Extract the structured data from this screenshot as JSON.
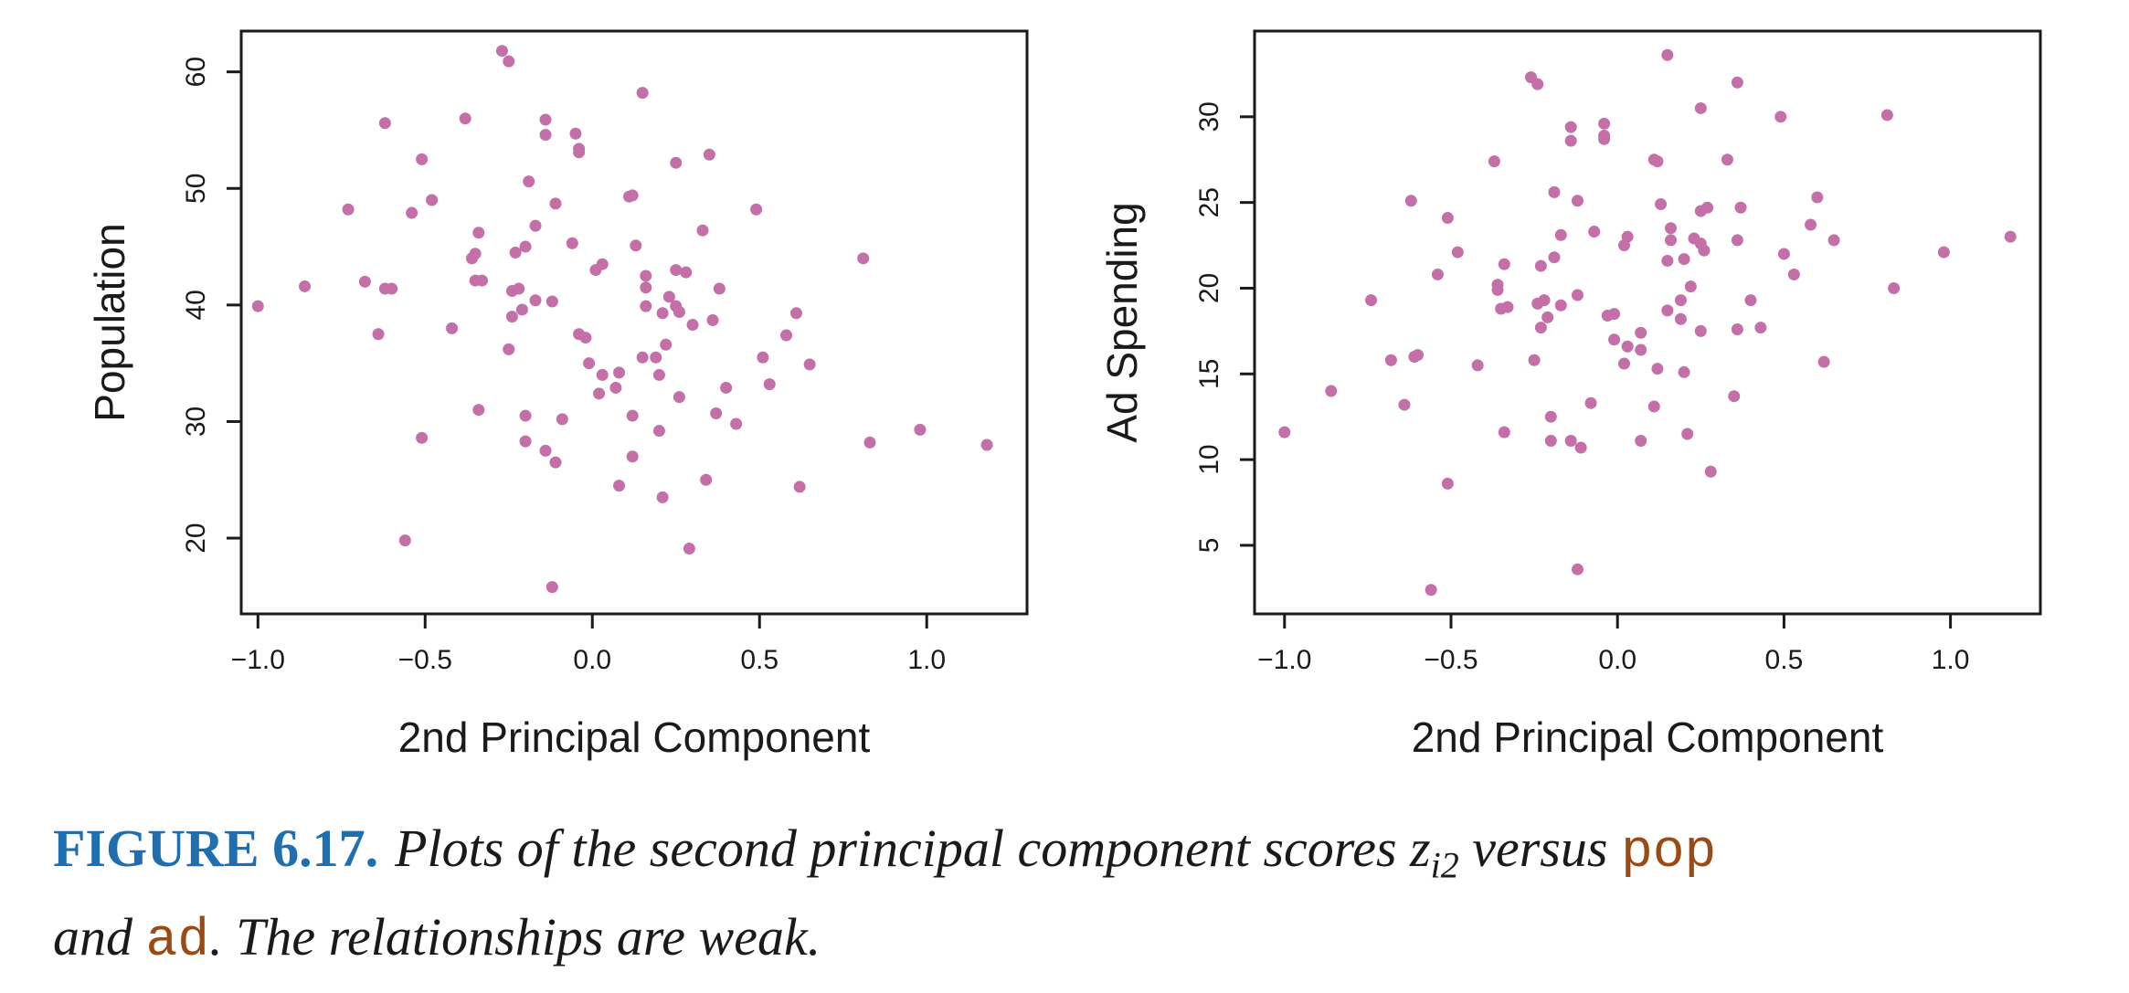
{
  "colors": {
    "point": "#c46fa7",
    "axis": "#1a1a1a",
    "caption_label": "#1f6fb0",
    "code": "#9a4a12"
  },
  "caption": {
    "label": "FIGURE 6.17.",
    "text1": "Plots of the second principal component scores ",
    "var": "z",
    "sub": "i2",
    "text2": " versus ",
    "code1": "pop",
    "text3": "and ",
    "code2": "ad",
    "text4": ". The relationships are weak."
  },
  "chart_data": [
    {
      "type": "scatter",
      "xlabel": "2nd Principal Component",
      "ylabel": "Population",
      "xlim": [
        -1.05,
        1.3
      ],
      "ylim": [
        13.5,
        63.5
      ],
      "xticks": [
        -1.0,
        -0.5,
        0.0,
        0.5,
        1.0
      ],
      "xtick_labels": [
        "−1.0",
        "−0.5",
        "0.0",
        "0.5",
        "1.0"
      ],
      "yticks": [
        20,
        30,
        40,
        50,
        60
      ],
      "ytick_labels": [
        "20",
        "30",
        "40",
        "50",
        "60"
      ],
      "points": [
        [
          -1.0,
          39.9
        ],
        [
          -0.86,
          41.6
        ],
        [
          -0.73,
          48.2
        ],
        [
          -0.68,
          42.0
        ],
        [
          -0.64,
          37.5
        ],
        [
          -0.62,
          55.6
        ],
        [
          -0.62,
          41.4
        ],
        [
          -0.6,
          41.4
        ],
        [
          -0.56,
          19.8
        ],
        [
          -0.54,
          47.9
        ],
        [
          -0.51,
          52.5
        ],
        [
          -0.51,
          28.6
        ],
        [
          -0.48,
          49.0
        ],
        [
          -0.42,
          38.0
        ],
        [
          -0.38,
          56.0
        ],
        [
          -0.36,
          44.0
        ],
        [
          -0.35,
          44.4
        ],
        [
          -0.35,
          42.1
        ],
        [
          -0.34,
          46.2
        ],
        [
          -0.34,
          31.0
        ],
        [
          -0.33,
          42.1
        ],
        [
          -0.27,
          61.8
        ],
        [
          -0.25,
          60.9
        ],
        [
          -0.25,
          36.2
        ],
        [
          -0.24,
          41.2
        ],
        [
          -0.24,
          39.0
        ],
        [
          -0.23,
          44.5
        ],
        [
          -0.22,
          41.4
        ],
        [
          -0.21,
          39.6
        ],
        [
          -0.2,
          30.5
        ],
        [
          -0.2,
          28.3
        ],
        [
          -0.2,
          45.0
        ],
        [
          -0.19,
          50.6
        ],
        [
          -0.17,
          46.8
        ],
        [
          -0.17,
          40.4
        ],
        [
          -0.14,
          55.9
        ],
        [
          -0.14,
          54.6
        ],
        [
          -0.14,
          27.5
        ],
        [
          -0.12,
          40.3
        ],
        [
          -0.11,
          48.7
        ],
        [
          -0.11,
          26.5
        ],
        [
          -0.12,
          15.8
        ],
        [
          -0.09,
          30.2
        ],
        [
          -0.06,
          45.3
        ],
        [
          -0.05,
          54.7
        ],
        [
          -0.04,
          53.1
        ],
        [
          -0.04,
          53.4
        ],
        [
          -0.04,
          37.5
        ],
        [
          -0.02,
          37.2
        ],
        [
          -0.01,
          35.0
        ],
        [
          0.01,
          43.0
        ],
        [
          0.02,
          32.4
        ],
        [
          0.03,
          43.5
        ],
        [
          0.03,
          34.0
        ],
        [
          0.07,
          32.9
        ],
        [
          0.08,
          24.5
        ],
        [
          0.08,
          34.2
        ],
        [
          0.11,
          49.3
        ],
        [
          0.12,
          49.4
        ],
        [
          0.12,
          30.5
        ],
        [
          0.12,
          27.0
        ],
        [
          0.13,
          45.1
        ],
        [
          0.15,
          58.2
        ],
        [
          0.15,
          35.5
        ],
        [
          0.16,
          42.5
        ],
        [
          0.16,
          41.5
        ],
        [
          0.16,
          39.9
        ],
        [
          0.19,
          35.5
        ],
        [
          0.2,
          34.0
        ],
        [
          0.2,
          29.2
        ],
        [
          0.21,
          39.3
        ],
        [
          0.21,
          23.5
        ],
        [
          0.22,
          36.6
        ],
        [
          0.23,
          40.7
        ],
        [
          0.25,
          52.2
        ],
        [
          0.25,
          43.0
        ],
        [
          0.25,
          39.9
        ],
        [
          0.26,
          39.4
        ],
        [
          0.26,
          32.1
        ],
        [
          0.28,
          42.8
        ],
        [
          0.29,
          19.1
        ],
        [
          0.3,
          38.3
        ],
        [
          0.33,
          46.4
        ],
        [
          0.34,
          25.0
        ],
        [
          0.35,
          52.9
        ],
        [
          0.36,
          38.7
        ],
        [
          0.37,
          30.7
        ],
        [
          0.38,
          41.4
        ],
        [
          0.4,
          32.9
        ],
        [
          0.43,
          29.8
        ],
        [
          0.49,
          48.2
        ],
        [
          0.51,
          35.5
        ],
        [
          0.53,
          33.2
        ],
        [
          0.58,
          37.4
        ],
        [
          0.61,
          39.3
        ],
        [
          0.62,
          24.4
        ],
        [
          0.65,
          34.9
        ],
        [
          0.81,
          44.0
        ],
        [
          0.83,
          28.2
        ],
        [
          0.98,
          29.3
        ],
        [
          1.18,
          28.0
        ]
      ]
    },
    {
      "type": "scatter",
      "xlabel": "2nd Principal Component",
      "ylabel": "Ad Spending",
      "xlim": [
        -1.09,
        1.27
      ],
      "ylim": [
        1.0,
        35.0
      ],
      "xticks": [
        -1.0,
        -0.5,
        0.0,
        0.5,
        1.0
      ],
      "xtick_labels": [
        "−1.0",
        "−0.5",
        "0.0",
        "0.5",
        "1.0"
      ],
      "yticks": [
        5,
        10,
        15,
        20,
        25,
        30
      ],
      "ytick_labels": [
        "5",
        "10",
        "15",
        "20",
        "25",
        "30"
      ],
      "points": [
        [
          -1.0,
          11.6
        ],
        [
          -0.86,
          14.0
        ],
        [
          -0.74,
          19.3
        ],
        [
          -0.68,
          15.8
        ],
        [
          -0.64,
          13.2
        ],
        [
          -0.62,
          25.1
        ],
        [
          -0.61,
          16.0
        ],
        [
          -0.6,
          16.1
        ],
        [
          -0.56,
          2.4
        ],
        [
          -0.54,
          20.8
        ],
        [
          -0.51,
          24.1
        ],
        [
          -0.51,
          8.6
        ],
        [
          -0.48,
          22.1
        ],
        [
          -0.42,
          15.5
        ],
        [
          -0.37,
          27.4
        ],
        [
          -0.36,
          19.9
        ],
        [
          -0.36,
          20.2
        ],
        [
          -0.35,
          18.8
        ],
        [
          -0.34,
          21.4
        ],
        [
          -0.34,
          11.6
        ],
        [
          -0.33,
          18.9
        ],
        [
          -0.26,
          32.3
        ],
        [
          -0.24,
          31.9
        ],
        [
          -0.25,
          15.8
        ],
        [
          -0.24,
          19.1
        ],
        [
          -0.23,
          17.7
        ],
        [
          -0.23,
          21.3
        ],
        [
          -0.22,
          19.3
        ],
        [
          -0.21,
          18.3
        ],
        [
          -0.2,
          12.5
        ],
        [
          -0.2,
          11.1
        ],
        [
          -0.19,
          21.8
        ],
        [
          -0.19,
          25.6
        ],
        [
          -0.17,
          23.1
        ],
        [
          -0.17,
          19.0
        ],
        [
          -0.14,
          29.4
        ],
        [
          -0.14,
          28.6
        ],
        [
          -0.14,
          11.1
        ],
        [
          -0.12,
          19.6
        ],
        [
          -0.12,
          25.1
        ],
        [
          -0.11,
          10.7
        ],
        [
          -0.12,
          3.6
        ],
        [
          -0.08,
          13.3
        ],
        [
          -0.07,
          23.3
        ],
        [
          -0.04,
          29.6
        ],
        [
          -0.04,
          28.7
        ],
        [
          -0.04,
          28.9
        ],
        [
          -0.03,
          18.4
        ],
        [
          -0.01,
          18.5
        ],
        [
          -0.01,
          17.0
        ],
        [
          0.02,
          22.5
        ],
        [
          0.02,
          15.6
        ],
        [
          0.03,
          23.0
        ],
        [
          0.03,
          16.6
        ],
        [
          0.07,
          16.4
        ],
        [
          0.07,
          11.1
        ],
        [
          0.07,
          17.4
        ],
        [
          0.11,
          27.5
        ],
        [
          0.12,
          27.4
        ],
        [
          0.12,
          15.3
        ],
        [
          0.11,
          13.1
        ],
        [
          0.13,
          24.9
        ],
        [
          0.15,
          33.6
        ],
        [
          0.15,
          18.7
        ],
        [
          0.16,
          23.5
        ],
        [
          0.16,
          22.8
        ],
        [
          0.15,
          21.6
        ],
        [
          0.19,
          19.3
        ],
        [
          0.19,
          18.2
        ],
        [
          0.2,
          15.1
        ],
        [
          0.2,
          21.7
        ],
        [
          0.21,
          11.5
        ],
        [
          0.22,
          20.1
        ],
        [
          0.23,
          22.9
        ],
        [
          0.25,
          30.5
        ],
        [
          0.25,
          24.5
        ],
        [
          0.25,
          22.6
        ],
        [
          0.26,
          22.2
        ],
        [
          0.25,
          17.5
        ],
        [
          0.27,
          24.7
        ],
        [
          0.28,
          9.3
        ],
        [
          0.35,
          13.7
        ],
        [
          0.33,
          27.5
        ],
        [
          0.36,
          17.6
        ],
        [
          0.36,
          32.0
        ],
        [
          0.36,
          22.8
        ],
        [
          0.37,
          24.7
        ],
        [
          0.4,
          19.3
        ],
        [
          0.43,
          17.7
        ],
        [
          0.49,
          30.0
        ],
        [
          0.5,
          22.0
        ],
        [
          0.53,
          20.8
        ],
        [
          0.58,
          23.7
        ],
        [
          0.6,
          25.3
        ],
        [
          0.62,
          15.7
        ],
        [
          0.65,
          22.8
        ],
        [
          0.81,
          30.1
        ],
        [
          0.83,
          20.0
        ],
        [
          0.98,
          22.1
        ],
        [
          1.18,
          23.0
        ]
      ]
    }
  ]
}
